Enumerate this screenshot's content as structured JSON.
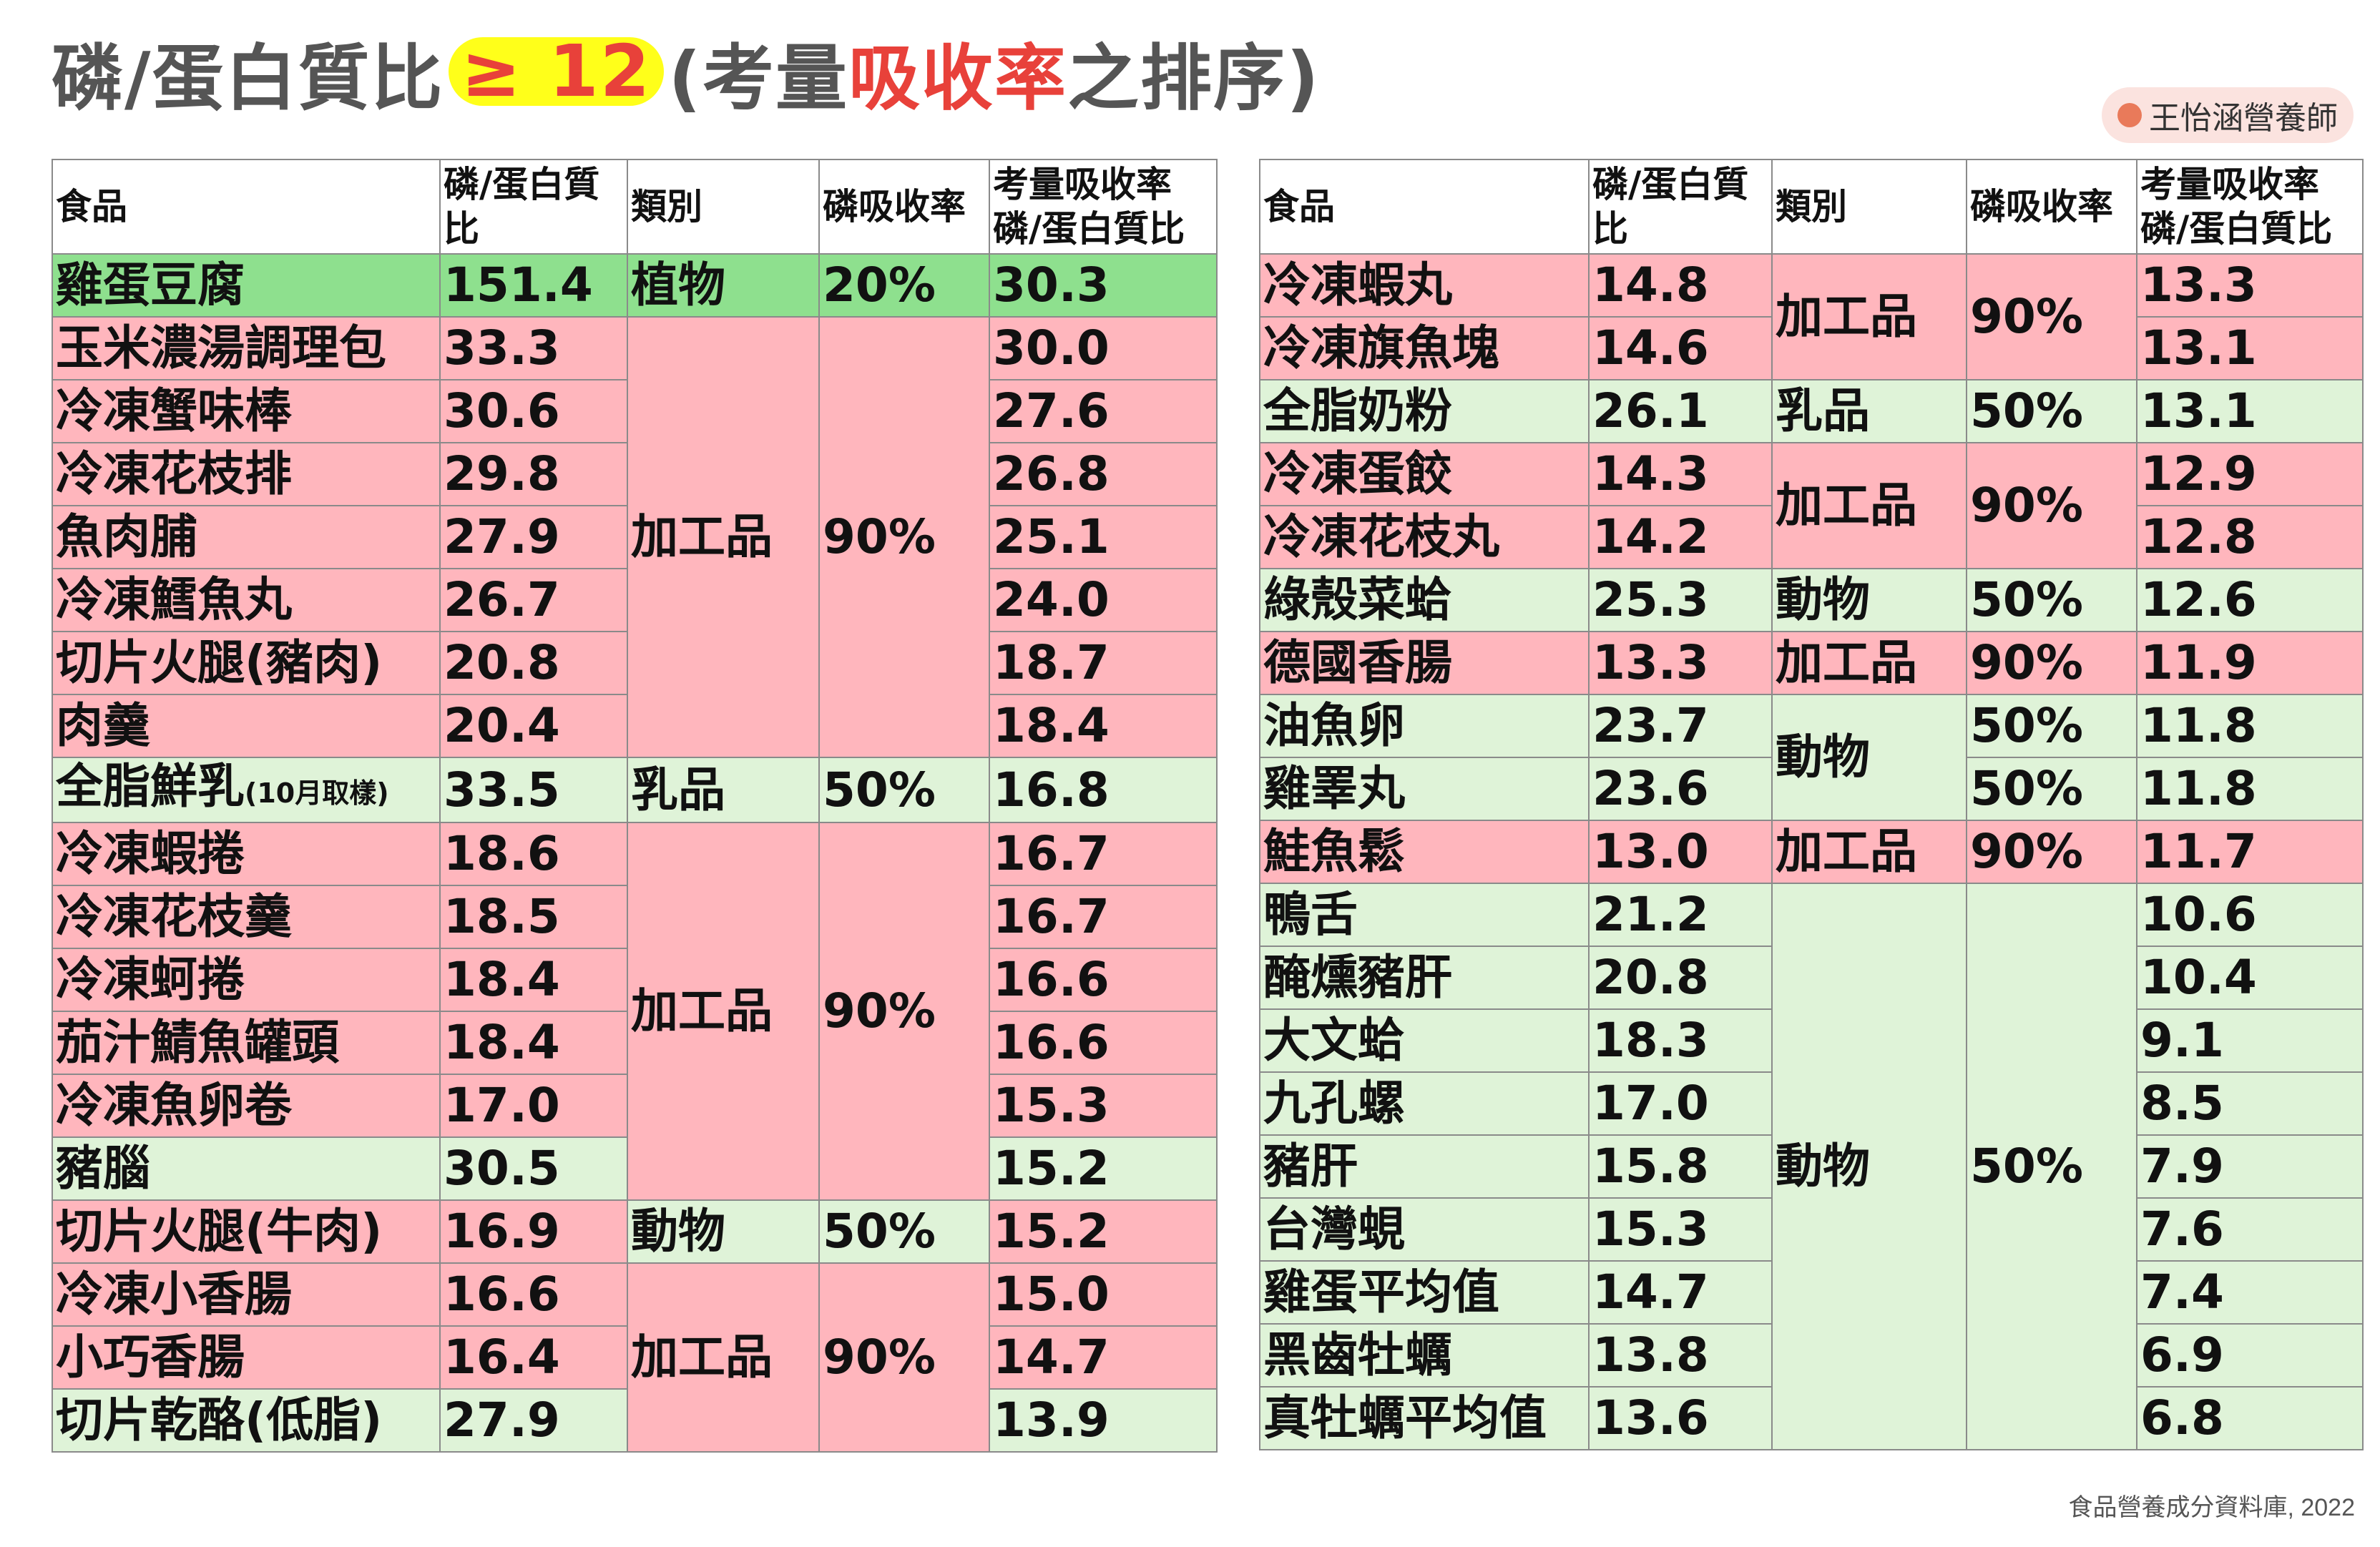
{
  "title": {
    "prefix": "磷/蛋白質比",
    "highlight": "≥ 12",
    "open": " (考量",
    "red": "吸收率",
    "suffix": "之排序)"
  },
  "brand": {
    "label": "王怡涵營養師"
  },
  "source": "食品營養成分資料庫, 2022",
  "colors": {
    "green": "#dff3d8",
    "dark_green": "#8ee08e",
    "pink": "#ffb6bd",
    "highlight": "#ffff1a",
    "accent_red": "#e8413a"
  },
  "headers": {
    "food": "食品",
    "ratio": "磷/蛋白質比",
    "category": "類別",
    "absorption": "磷吸收率",
    "adjusted": "考量吸收率磷/蛋白質比"
  },
  "left_table": {
    "rows": [
      {
        "food": "雞蛋豆腐",
        "ratio": "151.4",
        "adjusted": "30.3",
        "color": "dg"
      },
      {
        "food": "玉米濃湯調理包",
        "ratio": "33.3",
        "adjusted": "30.0",
        "color": "r"
      },
      {
        "food": "冷凍蟹味棒",
        "ratio": "30.6",
        "adjusted": "27.6",
        "color": "r"
      },
      {
        "food": "冷凍花枝排",
        "ratio": "29.8",
        "adjusted": "26.8",
        "color": "r"
      },
      {
        "food": "魚肉脯",
        "ratio": "27.9",
        "adjusted": "25.1",
        "color": "r"
      },
      {
        "food": "冷凍鱈魚丸",
        "ratio": "26.7",
        "adjusted": "24.0",
        "color": "r"
      },
      {
        "food": "切片火腿(豬肉)",
        "ratio": "20.8",
        "adjusted": "18.7",
        "color": "r"
      },
      {
        "food": "肉羹",
        "ratio": "20.4",
        "adjusted": "18.4",
        "color": "r"
      },
      {
        "food": "全脂鮮乳",
        "note": "(10月取樣)",
        "ratio": "33.5",
        "adjusted": "16.8",
        "color": "g"
      },
      {
        "food": "冷凍蝦捲",
        "ratio": "18.6",
        "adjusted": "16.7",
        "color": "r"
      },
      {
        "food": "冷凍花枝羹",
        "ratio": "18.5",
        "adjusted": "16.7",
        "color": "r"
      },
      {
        "food": "冷凍蚵捲",
        "ratio": "18.4",
        "adjusted": "16.6",
        "color": "r"
      },
      {
        "food": "茄汁鯖魚罐頭",
        "ratio": "18.4",
        "adjusted": "16.6",
        "color": "r"
      },
      {
        "food": "冷凍魚卵卷",
        "ratio": "17.0",
        "adjusted": "15.3",
        "color": "r"
      },
      {
        "food": "豬腦",
        "ratio": "30.5",
        "adjusted": "15.2",
        "color": "g"
      },
      {
        "food": "切片火腿(牛肉)",
        "ratio": "16.9",
        "adjusted": "15.2",
        "color": "r"
      },
      {
        "food": "冷凍小香腸",
        "ratio": "16.6",
        "adjusted": "15.0",
        "color": "r"
      },
      {
        "food": "小巧香腸",
        "ratio": "16.4",
        "adjusted": "14.7",
        "color": "r"
      },
      {
        "food": "切片乾酪(低脂)",
        "ratio": "27.9",
        "adjusted": "13.9",
        "color": "g"
      }
    ],
    "groups": [
      {
        "category": "植物",
        "absorption": "20%",
        "color": "dg"
      },
      {
        "category": "加工品",
        "absorption": "90%",
        "color": "r"
      },
      {
        "category": "乳品",
        "absorption": "50%",
        "color": "g"
      },
      {
        "category": "加工品",
        "absorption": "90%",
        "color": "r"
      },
      {
        "category": "動物",
        "absorption": "50%",
        "color": "g"
      },
      {
        "category": "加工品",
        "absorption": "90%",
        "color": "r"
      },
      {
        "category": "乳品",
        "absorption": "50%",
        "color": "g"
      }
    ]
  },
  "right_table": {
    "rows": [
      {
        "food": "冷凍蝦丸",
        "ratio": "14.8",
        "adjusted": "13.3",
        "color": "r"
      },
      {
        "food": "冷凍旗魚塊",
        "ratio": "14.6",
        "adjusted": "13.1",
        "color": "r"
      },
      {
        "food": "全脂奶粉",
        "ratio": "26.1",
        "adjusted": "13.1",
        "color": "g"
      },
      {
        "food": "冷凍蛋餃",
        "ratio": "14.3",
        "adjusted": "12.9",
        "color": "r"
      },
      {
        "food": "冷凍花枝丸",
        "ratio": "14.2",
        "adjusted": "12.8",
        "color": "r"
      },
      {
        "food": "綠殼菜蛤",
        "ratio": "25.3",
        "adjusted": "12.6",
        "color": "g"
      },
      {
        "food": "德國香腸",
        "ratio": "13.3",
        "adjusted": "11.9",
        "color": "r"
      },
      {
        "food": "油魚卵",
        "ratio": "23.7",
        "adjusted": "11.8",
        "color": "g"
      },
      {
        "food": "雞睪丸",
        "ratio": "23.6",
        "adjusted": "11.8",
        "color": "g"
      },
      {
        "food": "鮭魚鬆",
        "ratio": "13.0",
        "adjusted": "11.7",
        "color": "r"
      },
      {
        "food": "鴨舌",
        "ratio": "21.2",
        "adjusted": "10.6",
        "color": "g"
      },
      {
        "food": "醃燻豬肝",
        "ratio": "20.8",
        "adjusted": "10.4",
        "color": "g"
      },
      {
        "food": "大文蛤",
        "ratio": "18.3",
        "adjusted": "9.1",
        "color": "g"
      },
      {
        "food": "九孔螺",
        "ratio": "17.0",
        "adjusted": "8.5",
        "color": "g"
      },
      {
        "food": "豬肝",
        "ratio": "15.8",
        "adjusted": "7.9",
        "color": "g"
      },
      {
        "food": "台灣蜆",
        "ratio": "15.3",
        "adjusted": "7.6",
        "color": "g"
      },
      {
        "food": "雞蛋平均值",
        "ratio": "14.7",
        "adjusted": "7.4",
        "color": "g"
      },
      {
        "food": "黑齒牡蠣",
        "ratio": "13.8",
        "adjusted": "6.9",
        "color": "g"
      },
      {
        "food": "真牡蠣平均值",
        "ratio": "13.6",
        "adjusted": "6.8",
        "color": "g"
      }
    ],
    "groups": [
      {
        "category": "加工品",
        "absorption": "90%",
        "color": "r"
      },
      {
        "category": "乳品",
        "absorption": "50%",
        "color": "g"
      },
      {
        "category": "加工品",
        "absorption": "90%",
        "color": "r"
      },
      {
        "category": "動物",
        "absorption": "50%",
        "color": "g"
      },
      {
        "category": "加工品",
        "absorption": "90%",
        "color": "r"
      },
      {
        "category": "動物",
        "absorption": "50%",
        "color": "g"
      },
      {
        "category": "",
        "absorption": "50%",
        "color": "g"
      },
      {
        "category": "加工品",
        "absorption": "90%",
        "color": "r"
      },
      {
        "category": "動物",
        "absorption": "50%",
        "color": "g"
      }
    ]
  }
}
